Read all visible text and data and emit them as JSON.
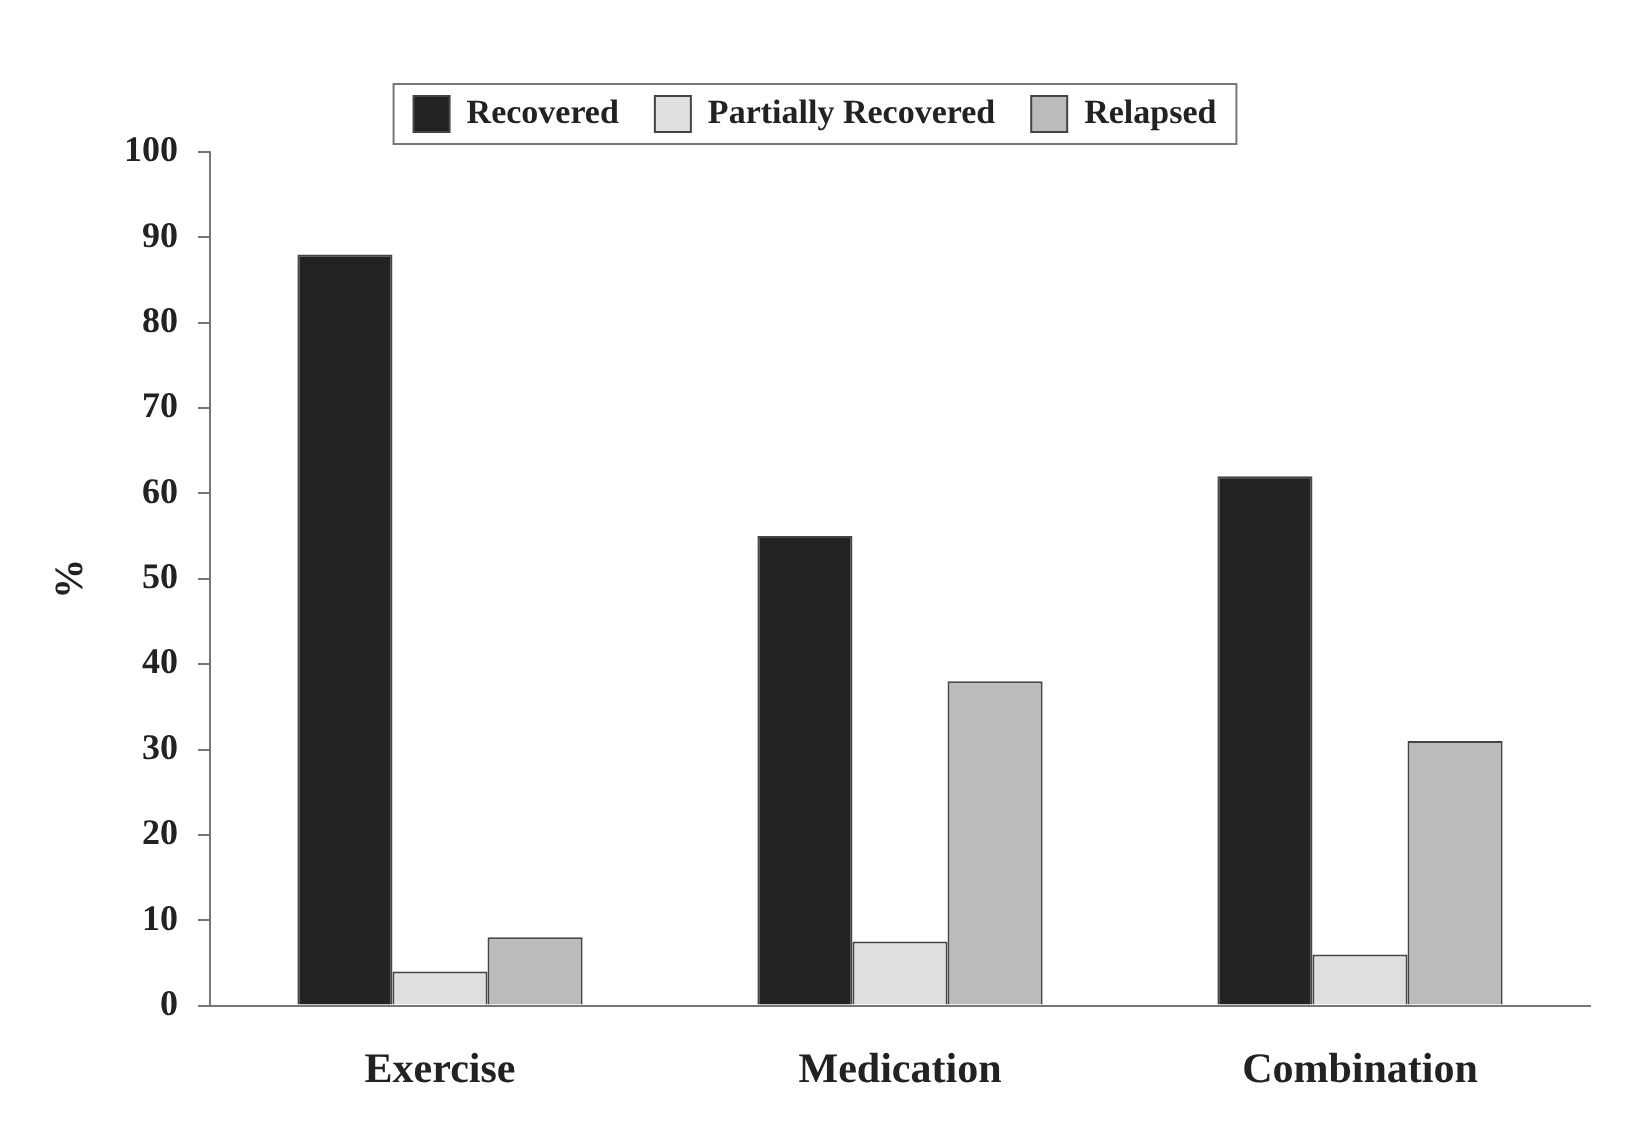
{
  "chart_data": {
    "type": "bar",
    "ylabel": "%",
    "categories": [
      "Exercise",
      "Medication",
      "Combination"
    ],
    "series": [
      {
        "name": "Recovered",
        "color": "#222222",
        "values": [
          88,
          55,
          62
        ]
      },
      {
        "name": "Partially Recovered",
        "color": "#e0e0e0",
        "values": [
          4,
          7.5,
          6
        ]
      },
      {
        "name": "Relapsed",
        "color": "#bbbbbb",
        "values": [
          8,
          38,
          31
        ]
      }
    ],
    "ylim": [
      0,
      100
    ],
    "yticks": [
      0,
      10,
      20,
      30,
      40,
      50,
      60,
      70,
      80,
      90,
      100
    ],
    "grid": false,
    "legend": "top"
  }
}
